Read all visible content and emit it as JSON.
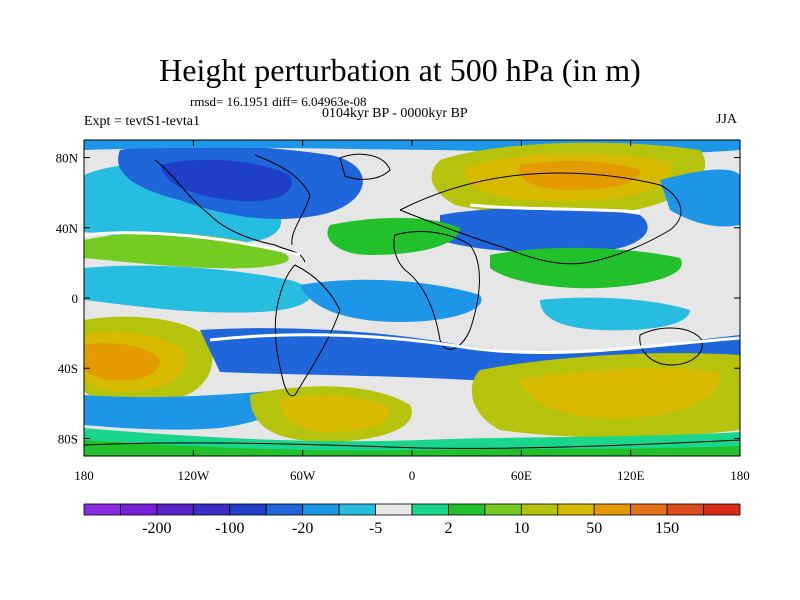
{
  "title": "Height perturbation at 500 hPa (in m)",
  "stats": "rmsd= 16.1951 diff= 6.04963e-08",
  "period": "0104kyr BP - 0000kyr BP",
  "experiment": "Expt = tevtS1-tevta1",
  "season": "JJA",
  "map": {
    "lon_ticks": [
      "180",
      "120W",
      "60W",
      "0",
      "60E",
      "120E",
      "180"
    ],
    "lat_ticks": [
      "80N",
      "40N",
      "0",
      "40S",
      "80S"
    ],
    "ocean_fill": "#e6e6e6"
  },
  "colorbar": {
    "colors": [
      "#8a2be2",
      "#7a1fd9",
      "#5b22c9",
      "#3a2ec6",
      "#1f3fc8",
      "#1f66db",
      "#1e96e8",
      "#27bde0",
      "#e8e8e8",
      "#19d68c",
      "#22c02a",
      "#74cc22",
      "#b6c30c",
      "#d7b900",
      "#e49b00",
      "#e3721a",
      "#dd4a1c",
      "#d82b1a"
    ],
    "labels": [
      "-200",
      "-100",
      "-20",
      "-5",
      "2",
      "10",
      "50",
      "150"
    ]
  }
}
